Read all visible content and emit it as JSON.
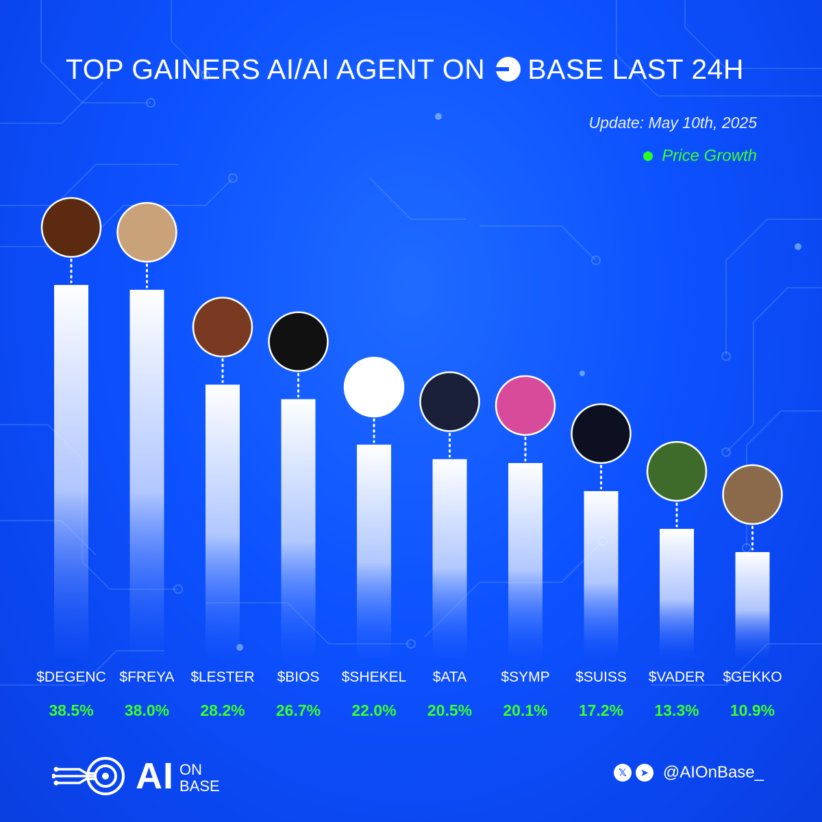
{
  "header": {
    "title_pre": "TOP GAINERS AI/AI AGENT ON",
    "base_word": "BASE",
    "title_post": "LAST 24H",
    "update": "Update: May 10th, 2025",
    "legend_label": "Price Growth"
  },
  "colors": {
    "background": "#0d52ff",
    "accent_green": "#3dff2b",
    "bar_top": "#ffffff"
  },
  "chart_data": {
    "type": "bar",
    "categories": [
      "$DEGENC",
      "$FREYA",
      "$LESTER",
      "$BIOS",
      "$SHEKEL",
      "$ATA",
      "$SYMP",
      "$SUISS",
      "$VADER",
      "$GEKKO"
    ],
    "values": [
      38.5,
      38.0,
      28.2,
      26.7,
      22.0,
      20.5,
      20.1,
      17.2,
      13.3,
      10.9
    ],
    "value_labels": [
      "38.5%",
      "38.0%",
      "28.2%",
      "26.7%",
      "22.0%",
      "20.5%",
      "20.1%",
      "17.2%",
      "13.3%",
      "10.9%"
    ],
    "icons": [
      "king-avatar-icon",
      "woman-avatar-icon",
      "man-avatar-icon",
      "diamond-logo-icon",
      "star-of-david-icon",
      "robot-dog-icon",
      "troll-avatar-icon",
      "helmet-avatar-icon",
      "green-man-avatar-icon",
      "phone-man-avatar-icon"
    ],
    "icon_colors": [
      "#5b2a10",
      "#c9a27a",
      "#7a3a22",
      "#111111",
      "#ffffff",
      "#1a1f3a",
      "#d84a9a",
      "#0c1020",
      "#3f6b2a",
      "#8a6a4a"
    ],
    "legend": [
      "Price Growth"
    ],
    "ylim": [
      0,
      40
    ],
    "grid": false
  },
  "footer": {
    "logo_ai": "AI",
    "logo_on": "ON",
    "logo_base": "BASE",
    "x_icon": "x-icon",
    "telegram_icon": "telegram-icon",
    "handle": "@AIOnBase_"
  }
}
